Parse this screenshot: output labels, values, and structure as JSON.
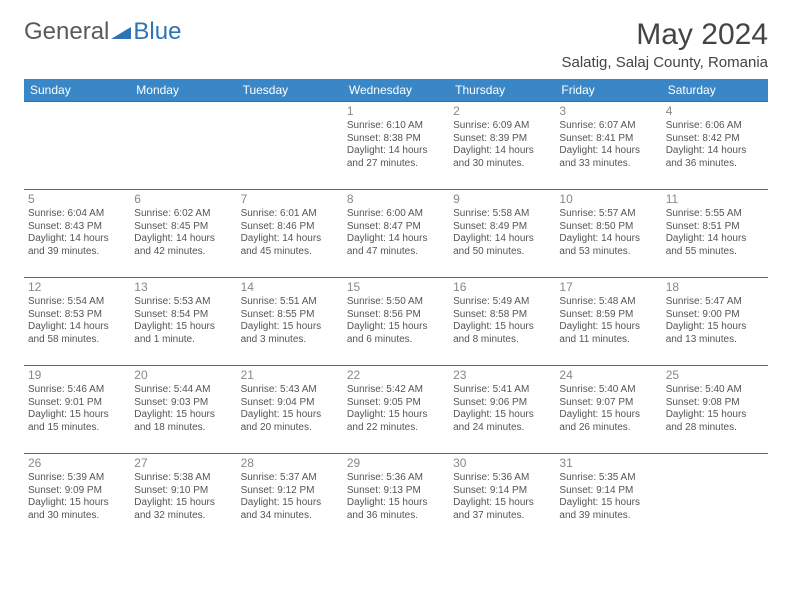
{
  "brand": {
    "part1": "General",
    "part2": "Blue",
    "logo_fill": "#2e74b5"
  },
  "title": "May 2024",
  "subtitle": "Salatig, Salaj County, Romania",
  "header_bg": "#3a87c7",
  "header_fg": "#ffffff",
  "border_color": "#2e74b5",
  "text_color": "#555555",
  "daynum_color": "#888888",
  "days": [
    "Sunday",
    "Monday",
    "Tuesday",
    "Wednesday",
    "Thursday",
    "Friday",
    "Saturday"
  ],
  "weeks": [
    [
      {},
      {},
      {},
      {
        "n": "1",
        "sr": "Sunrise: 6:10 AM",
        "ss": "Sunset: 8:38 PM",
        "d1": "Daylight: 14 hours",
        "d2": "and 27 minutes."
      },
      {
        "n": "2",
        "sr": "Sunrise: 6:09 AM",
        "ss": "Sunset: 8:39 PM",
        "d1": "Daylight: 14 hours",
        "d2": "and 30 minutes."
      },
      {
        "n": "3",
        "sr": "Sunrise: 6:07 AM",
        "ss": "Sunset: 8:41 PM",
        "d1": "Daylight: 14 hours",
        "d2": "and 33 minutes."
      },
      {
        "n": "4",
        "sr": "Sunrise: 6:06 AM",
        "ss": "Sunset: 8:42 PM",
        "d1": "Daylight: 14 hours",
        "d2": "and 36 minutes."
      }
    ],
    [
      {
        "n": "5",
        "sr": "Sunrise: 6:04 AM",
        "ss": "Sunset: 8:43 PM",
        "d1": "Daylight: 14 hours",
        "d2": "and 39 minutes."
      },
      {
        "n": "6",
        "sr": "Sunrise: 6:02 AM",
        "ss": "Sunset: 8:45 PM",
        "d1": "Daylight: 14 hours",
        "d2": "and 42 minutes."
      },
      {
        "n": "7",
        "sr": "Sunrise: 6:01 AM",
        "ss": "Sunset: 8:46 PM",
        "d1": "Daylight: 14 hours",
        "d2": "and 45 minutes."
      },
      {
        "n": "8",
        "sr": "Sunrise: 6:00 AM",
        "ss": "Sunset: 8:47 PM",
        "d1": "Daylight: 14 hours",
        "d2": "and 47 minutes."
      },
      {
        "n": "9",
        "sr": "Sunrise: 5:58 AM",
        "ss": "Sunset: 8:49 PM",
        "d1": "Daylight: 14 hours",
        "d2": "and 50 minutes."
      },
      {
        "n": "10",
        "sr": "Sunrise: 5:57 AM",
        "ss": "Sunset: 8:50 PM",
        "d1": "Daylight: 14 hours",
        "d2": "and 53 minutes."
      },
      {
        "n": "11",
        "sr": "Sunrise: 5:55 AM",
        "ss": "Sunset: 8:51 PM",
        "d1": "Daylight: 14 hours",
        "d2": "and 55 minutes."
      }
    ],
    [
      {
        "n": "12",
        "sr": "Sunrise: 5:54 AM",
        "ss": "Sunset: 8:53 PM",
        "d1": "Daylight: 14 hours",
        "d2": "and 58 minutes."
      },
      {
        "n": "13",
        "sr": "Sunrise: 5:53 AM",
        "ss": "Sunset: 8:54 PM",
        "d1": "Daylight: 15 hours",
        "d2": "and 1 minute."
      },
      {
        "n": "14",
        "sr": "Sunrise: 5:51 AM",
        "ss": "Sunset: 8:55 PM",
        "d1": "Daylight: 15 hours",
        "d2": "and 3 minutes."
      },
      {
        "n": "15",
        "sr": "Sunrise: 5:50 AM",
        "ss": "Sunset: 8:56 PM",
        "d1": "Daylight: 15 hours",
        "d2": "and 6 minutes."
      },
      {
        "n": "16",
        "sr": "Sunrise: 5:49 AM",
        "ss": "Sunset: 8:58 PM",
        "d1": "Daylight: 15 hours",
        "d2": "and 8 minutes."
      },
      {
        "n": "17",
        "sr": "Sunrise: 5:48 AM",
        "ss": "Sunset: 8:59 PM",
        "d1": "Daylight: 15 hours",
        "d2": "and 11 minutes."
      },
      {
        "n": "18",
        "sr": "Sunrise: 5:47 AM",
        "ss": "Sunset: 9:00 PM",
        "d1": "Daylight: 15 hours",
        "d2": "and 13 minutes."
      }
    ],
    [
      {
        "n": "19",
        "sr": "Sunrise: 5:46 AM",
        "ss": "Sunset: 9:01 PM",
        "d1": "Daylight: 15 hours",
        "d2": "and 15 minutes."
      },
      {
        "n": "20",
        "sr": "Sunrise: 5:44 AM",
        "ss": "Sunset: 9:03 PM",
        "d1": "Daylight: 15 hours",
        "d2": "and 18 minutes."
      },
      {
        "n": "21",
        "sr": "Sunrise: 5:43 AM",
        "ss": "Sunset: 9:04 PM",
        "d1": "Daylight: 15 hours",
        "d2": "and 20 minutes."
      },
      {
        "n": "22",
        "sr": "Sunrise: 5:42 AM",
        "ss": "Sunset: 9:05 PM",
        "d1": "Daylight: 15 hours",
        "d2": "and 22 minutes."
      },
      {
        "n": "23",
        "sr": "Sunrise: 5:41 AM",
        "ss": "Sunset: 9:06 PM",
        "d1": "Daylight: 15 hours",
        "d2": "and 24 minutes."
      },
      {
        "n": "24",
        "sr": "Sunrise: 5:40 AM",
        "ss": "Sunset: 9:07 PM",
        "d1": "Daylight: 15 hours",
        "d2": "and 26 minutes."
      },
      {
        "n": "25",
        "sr": "Sunrise: 5:40 AM",
        "ss": "Sunset: 9:08 PM",
        "d1": "Daylight: 15 hours",
        "d2": "and 28 minutes."
      }
    ],
    [
      {
        "n": "26",
        "sr": "Sunrise: 5:39 AM",
        "ss": "Sunset: 9:09 PM",
        "d1": "Daylight: 15 hours",
        "d2": "and 30 minutes."
      },
      {
        "n": "27",
        "sr": "Sunrise: 5:38 AM",
        "ss": "Sunset: 9:10 PM",
        "d1": "Daylight: 15 hours",
        "d2": "and 32 minutes."
      },
      {
        "n": "28",
        "sr": "Sunrise: 5:37 AM",
        "ss": "Sunset: 9:12 PM",
        "d1": "Daylight: 15 hours",
        "d2": "and 34 minutes."
      },
      {
        "n": "29",
        "sr": "Sunrise: 5:36 AM",
        "ss": "Sunset: 9:13 PM",
        "d1": "Daylight: 15 hours",
        "d2": "and 36 minutes."
      },
      {
        "n": "30",
        "sr": "Sunrise: 5:36 AM",
        "ss": "Sunset: 9:14 PM",
        "d1": "Daylight: 15 hours",
        "d2": "and 37 minutes."
      },
      {
        "n": "31",
        "sr": "Sunrise: 5:35 AM",
        "ss": "Sunset: 9:14 PM",
        "d1": "Daylight: 15 hours",
        "d2": "and 39 minutes."
      },
      {}
    ]
  ]
}
